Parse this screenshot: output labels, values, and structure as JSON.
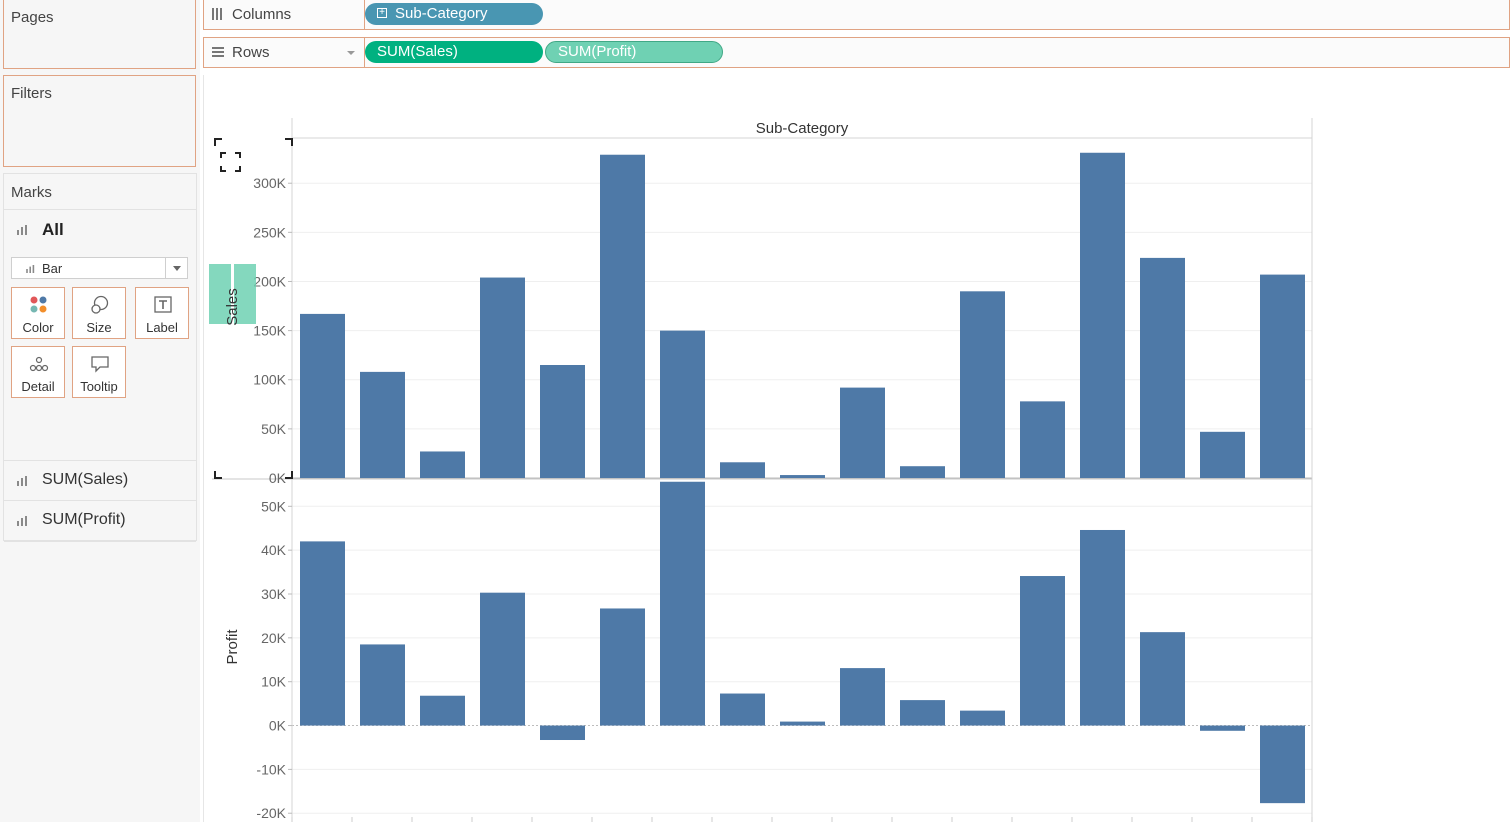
{
  "left_panel": {
    "pages_title": "Pages",
    "filters_title": "Filters",
    "marks": {
      "title": "Marks",
      "all_label": "All",
      "mark_type": "Bar",
      "cards": [
        {
          "label": "Color",
          "icon": "color-dots-icon"
        },
        {
          "label": "Size",
          "icon": "size-circles-icon"
        },
        {
          "label": "Label",
          "icon": "label-text-icon"
        },
        {
          "label": "Detail",
          "icon": "detail-dots-icon"
        },
        {
          "label": "Tooltip",
          "icon": "tooltip-speech-icon"
        }
      ],
      "measures": [
        "SUM(Sales)",
        "SUM(Profit)"
      ]
    }
  },
  "shelves": {
    "columns": {
      "label": "Columns",
      "pills": [
        {
          "text": "Sub-Category",
          "color": "#4996b2"
        }
      ]
    },
    "rows": {
      "label": "Rows",
      "pills": [
        {
          "text": "SUM(Sales)",
          "color": "#00b180"
        },
        {
          "text": "SUM(Profit)",
          "color": "#6fd1b3"
        }
      ]
    }
  },
  "chart_data": [
    {
      "type": "bar",
      "title": "Sub-Category",
      "ylabel": "Sales",
      "color": "#4e79a7",
      "ylim": [
        0,
        345000
      ],
      "yticks": [
        0,
        50000,
        100000,
        150000,
        200000,
        250000,
        300000
      ],
      "ytick_labels": [
        "0K",
        "50K",
        "100K",
        "150K",
        "200K",
        "250K",
        "300K"
      ],
      "values": [
        167000,
        108000,
        27000,
        204000,
        115000,
        329000,
        150000,
        16000,
        3000,
        92000,
        12000,
        190000,
        78000,
        331000,
        224000,
        47000,
        207000
      ]
    },
    {
      "type": "bar",
      "ylabel": "Profit",
      "color": "#4e79a7",
      "ylim": [
        -22000,
        56000
      ],
      "yticks": [
        -20000,
        -10000,
        0,
        10000,
        20000,
        30000,
        40000,
        50000
      ],
      "ytick_labels": [
        "-20K",
        "-10K",
        "0K",
        "10K",
        "20K",
        "30K",
        "40K",
        "50K"
      ],
      "values": [
        42000,
        18500,
        6800,
        30300,
        -3300,
        26700,
        55600,
        7300,
        900,
        13100,
        5800,
        3400,
        34100,
        44600,
        21300,
        -1200,
        -17700
      ]
    }
  ]
}
